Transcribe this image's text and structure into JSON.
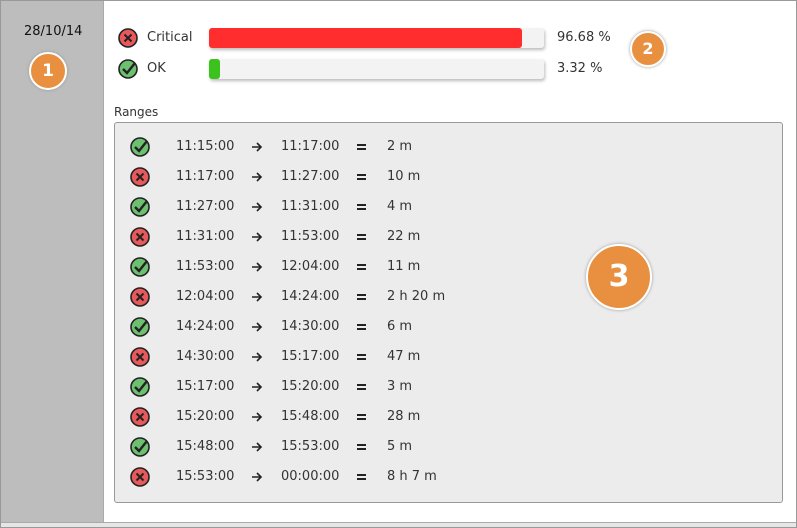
{
  "date": "28/10/14",
  "badges": [
    "1",
    "2",
    "3"
  ],
  "summary": [
    {
      "name": "Critical",
      "status": "critical",
      "value": 96.68,
      "value_label": "96.68 %"
    },
    {
      "name": "OK",
      "status": "ok",
      "value": 3.32,
      "value_label": "3.32 %"
    }
  ],
  "ranges": {
    "title": "Ranges",
    "rows": [
      {
        "status": "ok",
        "start": "11:15:00",
        "end": "11:17:00",
        "duration": "2 m"
      },
      {
        "status": "critical",
        "start": "11:17:00",
        "end": "11:27:00",
        "duration": "10 m"
      },
      {
        "status": "ok",
        "start": "11:27:00",
        "end": "11:31:00",
        "duration": "4 m"
      },
      {
        "status": "critical",
        "start": "11:31:00",
        "end": "11:53:00",
        "duration": "22 m"
      },
      {
        "status": "ok",
        "start": "11:53:00",
        "end": "12:04:00",
        "duration": "11 m"
      },
      {
        "status": "critical",
        "start": "12:04:00",
        "end": "14:24:00",
        "duration": "2 h 20 m"
      },
      {
        "status": "ok",
        "start": "14:24:00",
        "end": "14:30:00",
        "duration": "6 m"
      },
      {
        "status": "critical",
        "start": "14:30:00",
        "end": "15:17:00",
        "duration": "47 m"
      },
      {
        "status": "ok",
        "start": "15:17:00",
        "end": "15:20:00",
        "duration": "3 m"
      },
      {
        "status": "critical",
        "start": "15:20:00",
        "end": "15:48:00",
        "duration": "28 m"
      },
      {
        "status": "ok",
        "start": "15:48:00",
        "end": "15:53:00",
        "duration": "5 m"
      },
      {
        "status": "critical",
        "start": "15:53:00",
        "end": "00:00:00",
        "duration": "8 h 7 m"
      }
    ]
  }
}
